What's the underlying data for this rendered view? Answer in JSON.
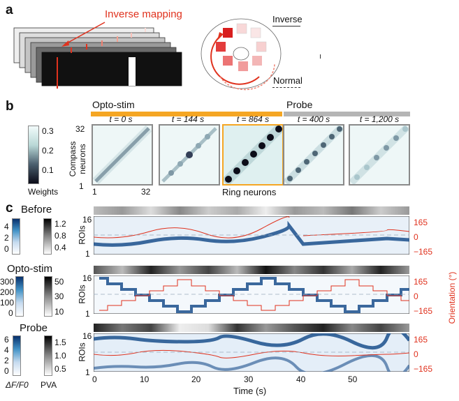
{
  "panel_a": {
    "letter": "a",
    "inverse_mapping_label": "Inverse mapping",
    "inverse_label": "Inverse",
    "normal_label": "Normal"
  },
  "panel_b": {
    "letter": "b",
    "opto_stim_label": "Opto-stim",
    "probe_label": "Probe",
    "colorbar_ticks": [
      "0.3",
      "0.2",
      "0.1"
    ],
    "colorbar_title": "Weights",
    "y_axis_label": "Compass neurons",
    "y_top": "32",
    "y_bottom": "1",
    "x_left": "1",
    "x_right": "32",
    "x_axis_label": "Ring neurons",
    "panels": [
      {
        "title": "t = 0 s"
      },
      {
        "title": "t = 144 s"
      },
      {
        "title": "t = 864 s"
      },
      {
        "title": "t = 400 s"
      },
      {
        "title": "t = 1,200 s"
      }
    ]
  },
  "panel_c": {
    "letter": "c",
    "rows": [
      {
        "title": "Before",
        "dff_ticks": [
          "4",
          "2",
          "0"
        ],
        "pva_ticks": [
          "1.2",
          "0.8",
          "0.4"
        ]
      },
      {
        "title": "Opto-stim",
        "dff_ticks": [
          "300",
          "200",
          "100",
          "0"
        ],
        "pva_ticks": [
          "50",
          "30",
          "10"
        ]
      },
      {
        "title": "Probe",
        "dff_ticks": [
          "6",
          "4",
          "2",
          "0"
        ],
        "pva_ticks": [
          "1.5",
          "1.0",
          "0.5"
        ]
      }
    ],
    "colorbar_dff_label": "ΔF/F0",
    "colorbar_pva_label": "PVA",
    "rois_label": "ROIs",
    "roi_top": "16",
    "roi_bottom": "1",
    "orientation_label": "Orientation (°)",
    "orientation_ticks": [
      "165",
      "0",
      "−165"
    ],
    "time_ticks": [
      "0",
      "10",
      "20",
      "30",
      "40",
      "50"
    ],
    "time_label": "Time (s)",
    "accent_color": "#e0321e"
  }
}
